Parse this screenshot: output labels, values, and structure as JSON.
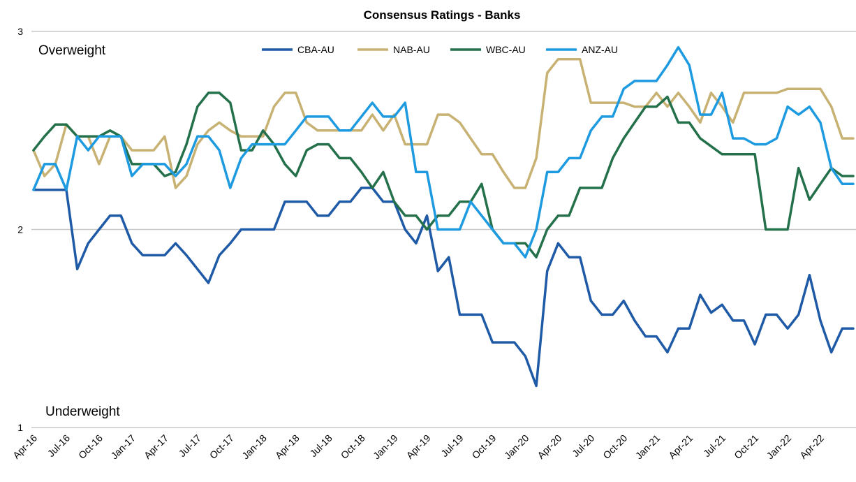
{
  "chart_data": {
    "type": "line",
    "title": "Consensus Ratings - Banks",
    "ylim": [
      1,
      3
    ],
    "yticks": [
      "1",
      "2",
      "3"
    ],
    "grid": "horizontal",
    "legend_position": "top-center",
    "annotations": {
      "top": "Overweight",
      "bottom": "Underweight"
    },
    "x_tick_labels": [
      "Apr-16",
      "Jul-16",
      "Oct-16",
      "Jan-17",
      "Apr-17",
      "Jul-17",
      "Oct-17",
      "Jan-18",
      "Apr-18",
      "Jul-18",
      "Oct-18",
      "Jan-19",
      "Apr-19",
      "Jul-19",
      "Oct-19",
      "Jan-20",
      "Apr-20",
      "Jul-20",
      "Oct-20",
      "Jan-21",
      "Apr-21",
      "Jul-21",
      "Oct-21",
      "Jan-22",
      "Apr-22"
    ],
    "x_start": "Apr-16",
    "x_end": "Jun-22",
    "series": [
      {
        "name": "CBA-AU",
        "color": "#1f5aa6",
        "values": [
          2.2,
          2.2,
          2.2,
          2.2,
          1.8,
          1.93,
          2.0,
          2.07,
          2.07,
          1.93,
          1.87,
          1.87,
          1.87,
          1.93,
          1.87,
          1.8,
          1.73,
          1.87,
          1.93,
          2.0,
          2.0,
          2.0,
          2.0,
          2.14,
          2.14,
          2.14,
          2.07,
          2.07,
          2.14,
          2.14,
          2.21,
          2.21,
          2.14,
          2.14,
          2.0,
          1.93,
          2.07,
          1.79,
          1.86,
          1.57,
          1.57,
          1.57,
          1.43,
          1.43,
          1.43,
          1.36,
          1.21,
          1.79,
          1.93,
          1.86,
          1.86,
          1.64,
          1.57,
          1.57,
          1.64,
          1.54,
          1.46,
          1.46,
          1.38,
          1.5,
          1.5,
          1.67,
          1.58,
          1.62,
          1.54,
          1.54,
          1.42,
          1.57,
          1.57,
          1.5,
          1.57,
          1.77,
          1.54,
          1.38,
          1.5,
          1.5
        ]
      },
      {
        "name": "NAB-AU",
        "color": "#c8b273",
        "values": [
          2.4,
          2.27,
          2.33,
          2.53,
          2.47,
          2.47,
          2.33,
          2.47,
          2.47,
          2.4,
          2.4,
          2.4,
          2.47,
          2.21,
          2.27,
          2.43,
          2.5,
          2.54,
          2.5,
          2.47,
          2.47,
          2.47,
          2.62,
          2.69,
          2.69,
          2.54,
          2.5,
          2.5,
          2.5,
          2.5,
          2.5,
          2.58,
          2.5,
          2.58,
          2.43,
          2.43,
          2.43,
          2.58,
          2.58,
          2.54,
          2.46,
          2.38,
          2.38,
          2.29,
          2.21,
          2.21,
          2.36,
          2.79,
          2.86,
          2.86,
          2.86,
          2.64,
          2.64,
          2.64,
          2.64,
          2.62,
          2.62,
          2.69,
          2.62,
          2.69,
          2.62,
          2.54,
          2.69,
          2.62,
          2.54,
          2.69,
          2.69,
          2.69,
          2.69,
          2.71,
          2.71,
          2.71,
          2.71,
          2.62,
          2.46,
          2.46
        ]
      },
      {
        "name": "WBC-AU",
        "color": "#23704b",
        "values": [
          2.4,
          2.47,
          2.53,
          2.53,
          2.47,
          2.47,
          2.47,
          2.5,
          2.47,
          2.33,
          2.33,
          2.33,
          2.27,
          2.29,
          2.43,
          2.62,
          2.69,
          2.69,
          2.64,
          2.4,
          2.4,
          2.5,
          2.43,
          2.33,
          2.27,
          2.4,
          2.43,
          2.43,
          2.36,
          2.36,
          2.29,
          2.21,
          2.29,
          2.14,
          2.07,
          2.07,
          2.0,
          2.07,
          2.07,
          2.14,
          2.14,
          2.23,
          2.0,
          1.93,
          1.93,
          1.93,
          1.86,
          2.0,
          2.07,
          2.07,
          2.21,
          2.21,
          2.21,
          2.36,
          2.46,
          2.54,
          2.62,
          2.62,
          2.67,
          2.54,
          2.54,
          2.46,
          2.42,
          2.38,
          2.38,
          2.38,
          2.38,
          2.0,
          2.0,
          2.0,
          2.31,
          2.15,
          2.23,
          2.31,
          2.27,
          2.27
        ]
      },
      {
        "name": "ANZ-AU",
        "color": "#1e9be0",
        "values": [
          2.2,
          2.33,
          2.33,
          2.2,
          2.47,
          2.4,
          2.47,
          2.47,
          2.47,
          2.27,
          2.33,
          2.33,
          2.33,
          2.27,
          2.33,
          2.47,
          2.47,
          2.4,
          2.21,
          2.36,
          2.43,
          2.43,
          2.43,
          2.43,
          2.5,
          2.57,
          2.57,
          2.57,
          2.5,
          2.5,
          2.57,
          2.64,
          2.57,
          2.57,
          2.64,
          2.29,
          2.29,
          2.0,
          2.0,
          2.0,
          2.14,
          2.07,
          2.0,
          1.93,
          1.93,
          1.86,
          2.0,
          2.29,
          2.29,
          2.36,
          2.36,
          2.5,
          2.57,
          2.57,
          2.71,
          2.75,
          2.75,
          2.75,
          2.83,
          2.92,
          2.83,
          2.58,
          2.58,
          2.69,
          2.46,
          2.46,
          2.43,
          2.43,
          2.46,
          2.62,
          2.58,
          2.62,
          2.54,
          2.31,
          2.23,
          2.23
        ]
      }
    ]
  }
}
